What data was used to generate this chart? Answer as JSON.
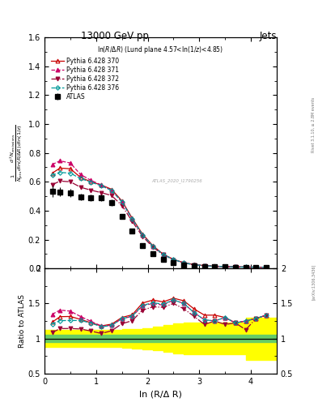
{
  "title_top": "13000 GeV pp",
  "title_right": "Jets",
  "panel_title": "ln(R/Δ R) (Lund plane 4.57<ln(1/z)<4.85)",
  "xlabel": "ln (R/Δ R)",
  "ylabel_ratio": "Ratio to ATLAS",
  "watermark": "ATLAS_2020_I1790256",
  "side_label": "Rivet 3.1.10, ≥ 2.8M events",
  "arxiv_label": "[arXiv:1306.3436]",
  "x_data": [
    0.15,
    0.3,
    0.5,
    0.7,
    0.9,
    1.1,
    1.3,
    1.5,
    1.7,
    1.9,
    2.1,
    2.3,
    2.5,
    2.7,
    2.9,
    3.1,
    3.3,
    3.5,
    3.7,
    3.9,
    4.1,
    4.3
  ],
  "atlas_y": [
    0.535,
    0.53,
    0.525,
    0.495,
    0.49,
    0.49,
    0.455,
    0.36,
    0.26,
    0.158,
    0.102,
    0.065,
    0.04,
    0.026,
    0.019,
    0.015,
    0.012,
    0.01,
    0.009,
    0.008,
    0.007,
    0.006
  ],
  "atlas_yerr": [
    0.04,
    0.03,
    0.028,
    0.024,
    0.022,
    0.022,
    0.022,
    0.018,
    0.014,
    0.01,
    0.007,
    0.005,
    0.003,
    0.003,
    0.002,
    0.002,
    0.001,
    0.001,
    0.001,
    0.001,
    0.001,
    0.001
  ],
  "py370_y": [
    0.66,
    0.695,
    0.69,
    0.63,
    0.6,
    0.578,
    0.548,
    0.468,
    0.348,
    0.238,
    0.158,
    0.099,
    0.063,
    0.04,
    0.027,
    0.02,
    0.016,
    0.013,
    0.011,
    0.01,
    0.009,
    0.008
  ],
  "py371_y": [
    0.72,
    0.745,
    0.73,
    0.65,
    0.61,
    0.578,
    0.54,
    0.462,
    0.342,
    0.232,
    0.153,
    0.096,
    0.062,
    0.039,
    0.026,
    0.019,
    0.015,
    0.013,
    0.011,
    0.01,
    0.009,
    0.008
  ],
  "py372_y": [
    0.58,
    0.605,
    0.6,
    0.562,
    0.542,
    0.525,
    0.505,
    0.436,
    0.326,
    0.222,
    0.148,
    0.094,
    0.06,
    0.037,
    0.025,
    0.018,
    0.015,
    0.012,
    0.011,
    0.009,
    0.009,
    0.008
  ],
  "py376_y": [
    0.645,
    0.665,
    0.66,
    0.622,
    0.598,
    0.572,
    0.54,
    0.462,
    0.343,
    0.233,
    0.154,
    0.097,
    0.062,
    0.039,
    0.026,
    0.019,
    0.015,
    0.013,
    0.011,
    0.01,
    0.009,
    0.008
  ],
  "color_370": "#c80000",
  "color_371": "#cc0066",
  "color_372": "#990033",
  "color_376": "#009999",
  "xlim": [
    0,
    4.5
  ],
  "ylim_main": [
    0.0,
    1.6
  ],
  "ylim_ratio": [
    0.5,
    2.0
  ],
  "green_band_lo": 0.95,
  "green_band_hi": 1.05,
  "yellow_band_x": [
    0.0,
    0.15,
    0.3,
    0.5,
    0.7,
    0.9,
    1.1,
    1.3,
    1.5,
    1.7,
    1.9,
    2.1,
    2.3,
    2.5,
    2.7,
    2.9,
    3.1,
    3.3,
    3.5,
    3.7,
    3.9,
    4.1,
    4.3,
    4.5
  ],
  "yellow_band_lo": [
    0.88,
    0.88,
    0.88,
    0.88,
    0.88,
    0.88,
    0.88,
    0.88,
    0.88,
    0.87,
    0.86,
    0.85,
    0.83,
    0.81,
    0.79,
    0.77,
    0.77,
    0.77,
    0.77,
    0.77,
    0.77,
    0.7,
    0.7,
    0.7
  ],
  "yellow_band_hi": [
    1.12,
    1.12,
    1.12,
    1.12,
    1.12,
    1.12,
    1.12,
    1.12,
    1.12,
    1.13,
    1.14,
    1.15,
    1.17,
    1.19,
    1.21,
    1.23,
    1.23,
    1.23,
    1.23,
    1.23,
    1.23,
    1.3,
    1.3,
    1.3
  ]
}
